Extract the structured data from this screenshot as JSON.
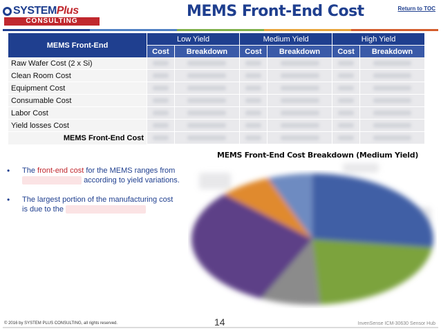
{
  "header": {
    "logo": {
      "line1": "SYSTEM",
      "line1_plus": "Plus",
      "line2": "CONSULTING"
    },
    "title": "MEMS Front-End Cost",
    "toc_link": "Return to TOC",
    "color_bar": [
      "#1f3f8f",
      "#4d7fc3",
      "#7fb04a",
      "#e8a43a",
      "#d45d2c"
    ]
  },
  "table": {
    "header_main": "MEMS Front-End",
    "yields": [
      "Low Yield",
      "Medium Yield",
      "High Yield"
    ],
    "sub_headers": [
      "Cost",
      "Breakdown",
      "Cost",
      "Breakdown",
      "Cost",
      "Breakdown"
    ],
    "rows": [
      "Raw Wafer Cost (2 x Si)",
      "Clean Room Cost",
      "Equipment Cost",
      "Consumable Cost",
      "Labor Cost",
      "Yield losses Cost"
    ],
    "total_label": "MEMS Front-End Cost"
  },
  "chart": {
    "title": "MEMS Front-End Cost Breakdown (Medium Yield)",
    "colors": [
      "#3f5fa5",
      "#7ca33c",
      "#8b8b8b",
      "#5d3f87",
      "#e08a2e",
      "#6e8bc1"
    ]
  },
  "bullets": [
    {
      "before": "The ",
      "highlight": "front-end cost",
      "after": " for the MEMS ranges from",
      "tail": "according to yield variations."
    },
    {
      "line1": "The largest portion of the manufacturing cost",
      "line2": "is due to the"
    }
  ],
  "footer": {
    "copyright": "© 2016 by SYSTEM PLUS CONSULTING, all rights reserved.",
    "page": "14",
    "product": "InvenSense ICM-30630 Sensor Hub"
  }
}
